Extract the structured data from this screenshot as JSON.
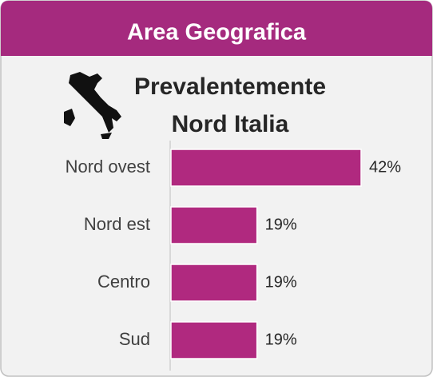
{
  "chart_data": {
    "type": "bar",
    "orientation": "horizontal",
    "title": "Area Geografica",
    "subtitle": [
      "Prevalentemente",
      "Nord Italia"
    ],
    "categories": [
      "Nord ovest",
      "Nord est",
      "Centro",
      "Sud"
    ],
    "values": [
      42,
      19,
      19,
      19
    ],
    "value_labels": [
      "42%",
      "19%",
      "19%",
      "19%"
    ],
    "color": "#b0297f"
  }
}
